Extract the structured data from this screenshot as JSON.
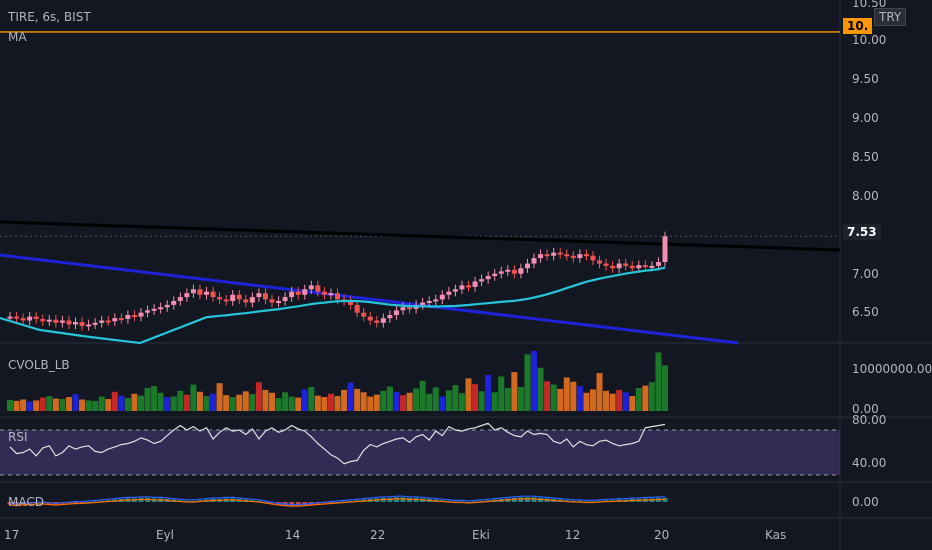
{
  "header": {
    "symbol": "TIRE, 6s, BIST",
    "ma_label": "MA",
    "currency": "TRY"
  },
  "price_axis": {
    "ticks": [
      "10.50",
      "10.00",
      "9.50",
      "9.00",
      "8.50",
      "8.00",
      "7.00",
      "6.50"
    ],
    "last_price": "7.53",
    "hline_price": "10.15",
    "hline_label": "10."
  },
  "volume_pane": {
    "title": "CVOLB_LB",
    "ticks": [
      "10000000.00",
      "0.00"
    ]
  },
  "rsi_pane": {
    "title": "RSI",
    "ticks": [
      "80.00",
      "40.00"
    ]
  },
  "macd_pane": {
    "title": "MACD",
    "ticks": [
      "0.00"
    ]
  },
  "time_axis": {
    "labels": [
      "17",
      "Eyl",
      "14",
      "22",
      "Eki",
      "12",
      "20",
      "Kas"
    ]
  },
  "colors": {
    "bg": "#131722",
    "up": "#ef5350",
    "down": "#f48fb1",
    "ma": "#26c6da",
    "trend_black": "#000000",
    "trend_blue": "#1e22d9",
    "hline": "#ff9800",
    "vol_green": "#1b7a2a",
    "vol_orange": "#d2691e",
    "vol_blue": "#1e22d9",
    "vol_red": "#c62828",
    "rsi_line": "#e0e0e0",
    "rsi_band": "#3a2f5c"
  },
  "chart_data": {
    "type": "candlestick",
    "price_range": [
      6.2,
      10.6
    ],
    "closes": [
      6.5,
      6.48,
      6.45,
      6.5,
      6.47,
      6.44,
      6.46,
      6.42,
      6.45,
      6.4,
      6.43,
      6.38,
      6.4,
      6.42,
      6.45,
      6.44,
      6.48,
      6.47,
      6.52,
      6.5,
      6.55,
      6.58,
      6.6,
      6.62,
      6.65,
      6.7,
      6.75,
      6.8,
      6.85,
      6.78,
      6.82,
      6.75,
      6.72,
      6.7,
      6.78,
      6.72,
      6.68,
      6.75,
      6.8,
      6.72,
      6.68,
      6.7,
      6.75,
      6.82,
      6.78,
      6.85,
      6.9,
      6.82,
      6.78,
      6.8,
      6.72,
      6.7,
      6.65,
      6.55,
      6.5,
      6.45,
      6.42,
      6.48,
      6.52,
      6.58,
      6.62,
      6.6,
      6.65,
      6.68,
      6.7,
      6.72,
      6.78,
      6.82,
      6.85,
      6.9,
      6.88,
      6.95,
      6.98,
      7.02,
      7.05,
      7.08,
      7.1,
      7.05,
      7.12,
      7.18,
      7.25,
      7.3,
      7.28,
      7.32,
      7.3,
      7.28,
      7.25,
      7.3,
      7.28,
      7.22,
      7.18,
      7.15,
      7.12,
      7.18,
      7.15,
      7.12,
      7.16,
      7.14,
      7.15,
      7.2,
      7.53
    ],
    "ma_start_index": 30,
    "volume": [
      2.3,
      2.1,
      2.4,
      2.0,
      2.2,
      2.8,
      3.1,
      2.6,
      2.5,
      2.9,
      3.5,
      2.4,
      2.2,
      2.1,
      3.0,
      2.5,
      4.0,
      3.2,
      2.7,
      3.6,
      3.2,
      4.8,
      5.2,
      3.8,
      2.9,
      3.0,
      4.2,
      3.4,
      5.5,
      4.0,
      3.1,
      3.6,
      5.8,
      3.3,
      2.9,
      3.4,
      4.1,
      3.5,
      6.0,
      4.4,
      3.8,
      2.7,
      3.9,
      3.0,
      2.8,
      4.5,
      5.0,
      3.2,
      2.9,
      3.6,
      3.1,
      4.4,
      5.9,
      4.6,
      3.9,
      3.0,
      3.4,
      4.2,
      5.1,
      4.0,
      3.3,
      3.8,
      4.7,
      6.3,
      3.6,
      4.9,
      3.0,
      4.3,
      5.4,
      3.7,
      6.8,
      5.6,
      4.1,
      7.5,
      3.9,
      7.2,
      4.8,
      8.1,
      5.0,
      11.8,
      12.5,
      9.0,
      6.2,
      5.5,
      4.6,
      7.0,
      6.1,
      5.2,
      3.8,
      4.5,
      7.9,
      4.2,
      3.6,
      4.4,
      3.9,
      3.1,
      4.8,
      5.3,
      6.0,
      12.2,
      9.5
    ],
    "rsi": [
      55,
      49,
      50,
      53,
      47,
      54,
      56,
      47,
      50,
      56,
      53,
      55,
      56,
      51,
      50,
      53,
      55,
      57,
      58,
      60,
      63,
      61,
      58,
      60,
      65,
      70,
      74,
      70,
      73,
      69,
      72,
      62,
      68,
      72,
      69,
      70,
      66,
      71,
      62,
      69,
      72,
      68,
      70,
      74,
      71,
      69,
      64,
      58,
      53,
      48,
      45,
      40,
      42,
      43,
      52,
      57,
      55,
      58,
      60,
      62,
      63,
      59,
      64,
      66,
      61,
      69,
      65,
      73,
      70,
      69,
      71,
      72,
      74,
      76,
      70,
      72,
      68,
      65,
      64,
      69,
      66,
      67,
      66,
      60,
      58,
      62,
      55,
      60,
      57,
      56,
      60,
      61,
      58,
      56,
      57,
      58,
      60,
      72,
      73,
      74,
      75
    ],
    "macd": [
      -0.04,
      -0.05,
      -0.04,
      -0.03,
      -0.02,
      -0.02,
      -0.03,
      -0.04,
      -0.03,
      -0.02,
      -0.01,
      -0.01,
      0.0,
      0.01,
      0.02,
      0.03,
      0.04,
      0.05,
      0.06,
      0.06,
      0.07,
      0.07,
      0.06,
      0.06,
      0.05,
      0.04,
      0.03,
      0.02,
      0.02,
      0.03,
      0.04,
      0.05,
      0.05,
      0.06,
      0.06,
      0.05,
      0.04,
      0.03,
      0.02,
      0.0,
      -0.02,
      -0.04,
      -0.05,
      -0.06,
      -0.06,
      -0.05,
      -0.04,
      -0.03,
      -0.02,
      -0.01,
      0.0,
      0.01,
      0.02,
      0.03,
      0.04,
      0.05,
      0.06,
      0.07,
      0.07,
      0.08,
      0.08,
      0.07,
      0.07,
      0.06,
      0.05,
      0.04,
      0.03,
      0.02,
      0.01,
      0.01,
      0.0,
      0.01,
      0.02,
      0.03,
      0.04,
      0.05,
      0.06,
      0.07,
      0.08,
      0.08,
      0.08,
      0.07,
      0.06,
      0.05,
      0.04,
      0.03,
      0.02,
      0.02,
      0.01,
      0.01,
      0.02,
      0.03,
      0.03,
      0.04,
      0.04,
      0.05,
      0.05,
      0.06,
      0.06,
      0.07,
      0.07
    ]
  }
}
